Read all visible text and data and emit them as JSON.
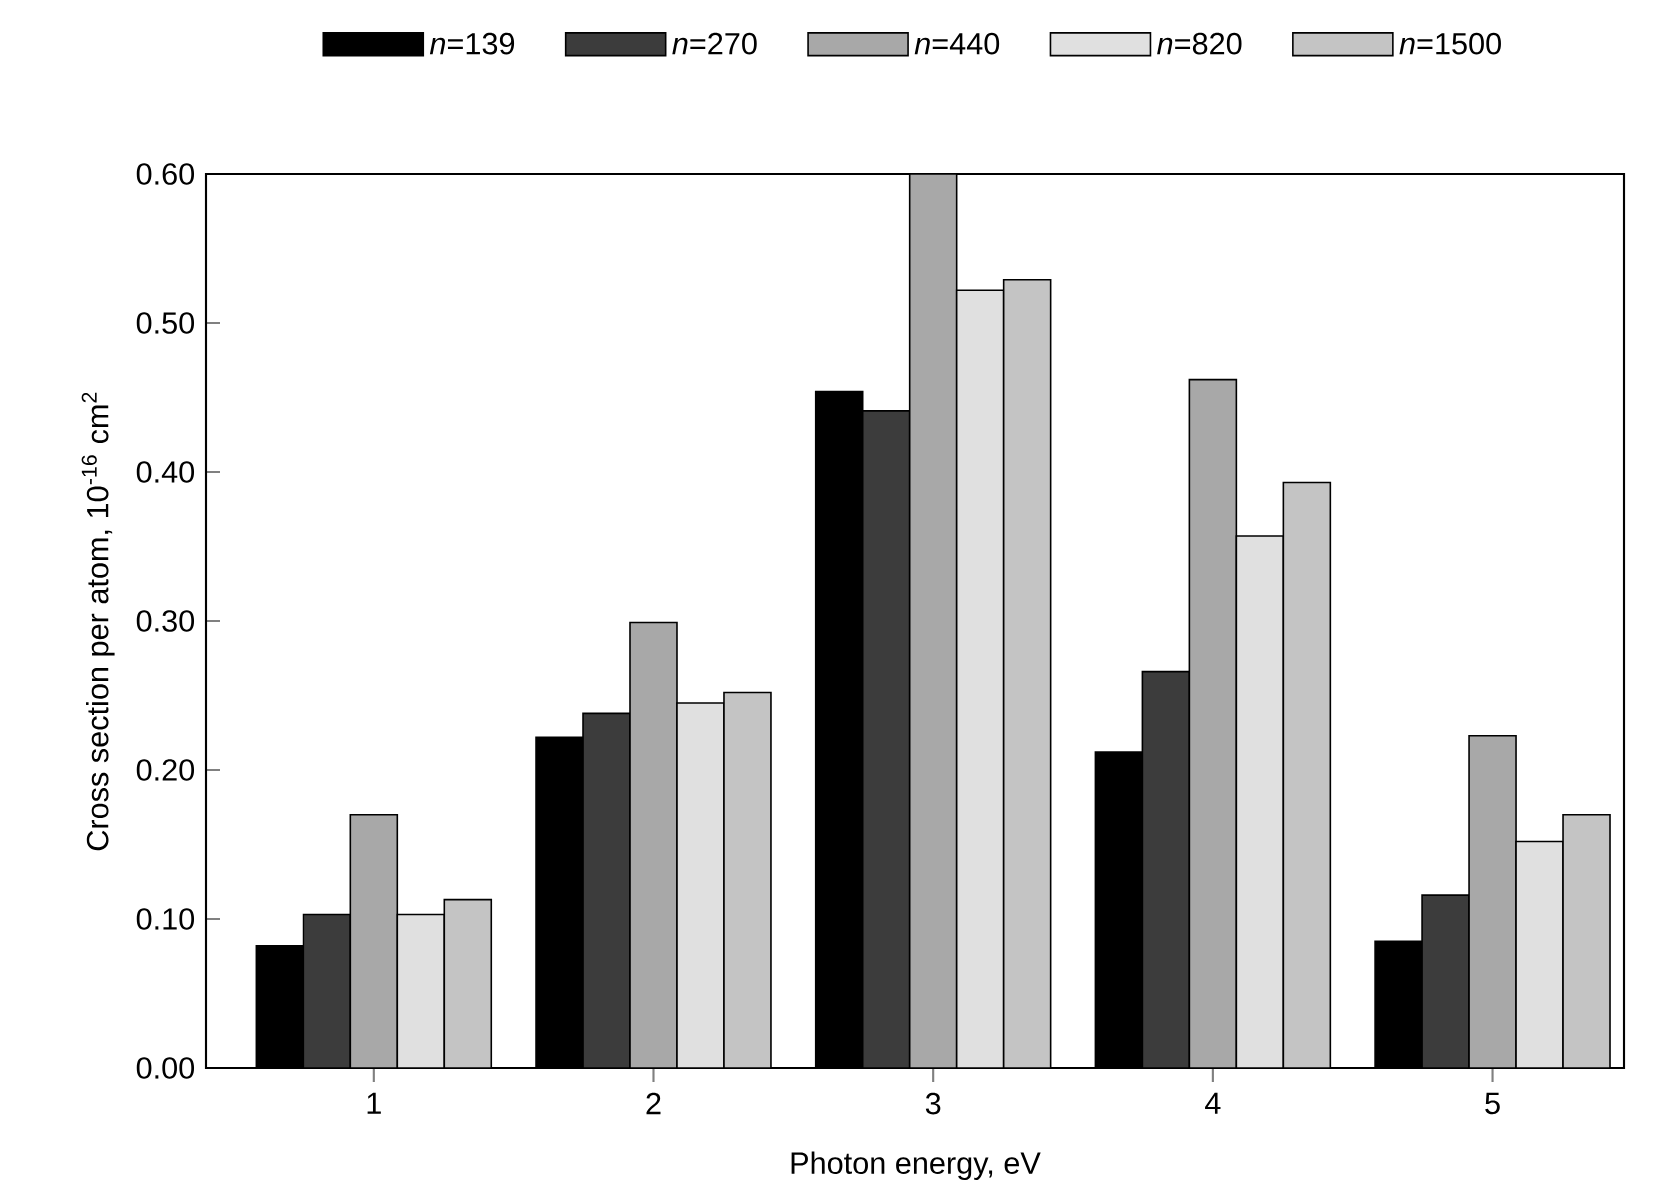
{
  "chart_data": {
    "type": "bar",
    "xlabel": "Photon energy, eV",
    "ylabel": "Cross section per atom, 10$^{-16}$ cm$^{2}$",
    "categories": [
      "1",
      "2",
      "3",
      "4",
      "5"
    ],
    "series": [
      {
        "name": "*n*=139",
        "color": "#000000",
        "values": [
          0.082,
          0.222,
          0.454,
          0.212,
          0.085
        ]
      },
      {
        "name": "*n*=270",
        "color": "#3c3c3c",
        "values": [
          0.103,
          0.238,
          0.441,
          0.266,
          0.116
        ]
      },
      {
        "name": "*n*=440",
        "color": "#a8a8a8",
        "values": [
          0.17,
          0.299,
          0.6,
          0.462,
          0.223
        ]
      },
      {
        "name": "*n*=820",
        "color": "#e0e0e0",
        "values": [
          0.103,
          0.245,
          0.522,
          0.357,
          0.152
        ]
      },
      {
        "name": "*n*=1500",
        "color": "#c4c4c4",
        "values": [
          0.113,
          0.252,
          0.529,
          0.393,
          0.17
        ]
      }
    ],
    "ylim": [
      0,
      0.6
    ],
    "yticks": [
      {
        "value": 0,
        "label": "0.00"
      },
      {
        "value": 0.1,
        "label": "0.10"
      },
      {
        "value": 0.2,
        "label": "0.20"
      },
      {
        "value": 0.3,
        "label": "0.30"
      },
      {
        "value": 0.4,
        "label": "0.40"
      },
      {
        "value": 0.5,
        "label": "0.50"
      },
      {
        "value": 0.6,
        "label": "0.60"
      }
    ],
    "legend": "top",
    "grid": false
  }
}
